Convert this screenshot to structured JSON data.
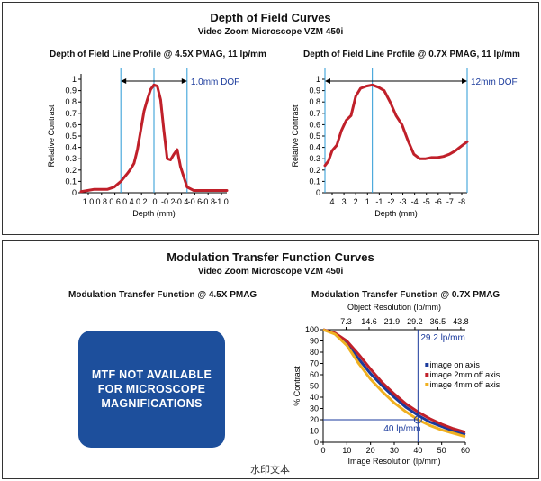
{
  "top_section": {
    "title": "Depth of Field Curves",
    "subtitle": "Video Zoom Microscope VZM 450i"
  },
  "bottom_section": {
    "title": "Modulation Transfer Function Curves",
    "subtitle": "Video Zoom Microscope VZM 450i",
    "left_chart_title": "Modulation Transfer Function @ 4.5X PMAG",
    "na_message": "MTF NOT AVAILABLE FOR MICROSCOPE MAGNIFICATIONS"
  },
  "watermark": "水印文本",
  "colors": {
    "curve_red": "#c0202a",
    "guide_blue": "#2a9ad6",
    "box_blue": "#1d4f9c",
    "line_blue": "#1a3a9c",
    "line_yellow": "#f0b020"
  },
  "chart_data": [
    {
      "type": "line",
      "title": "Depth of Field Line Profile @ 4.5X PMAG, 11 lp/mm",
      "xlabel": "Depth (mm)",
      "ylabel": "Relative Contrast",
      "x_tick_labels": [
        "1.0",
        "0.8",
        "0.6",
        "0.4",
        "0.2",
        "0",
        "-0.2",
        "-0.4",
        "-0.6",
        "-0.8",
        "-1.0"
      ],
      "y_ticks": [
        "0",
        "0.1",
        "0.2",
        "0.3",
        "0.4",
        "0.5",
        "0.6",
        "0.7",
        "0.8",
        "0.9",
        "1"
      ],
      "xlim": [
        1.1,
        -1.1
      ],
      "ylim": [
        0,
        1.0
      ],
      "annotation": "1.0mm DOF",
      "dof_bounds": [
        0.5,
        -0.5
      ],
      "center_line": 0,
      "series": [
        {
          "x": [
            1.1,
            1.0,
            0.9,
            0.8,
            0.7,
            0.6,
            0.5,
            0.4,
            0.35,
            0.3,
            0.25,
            0.2,
            0.15,
            0.1,
            0.05,
            0.0,
            -0.05,
            -0.1,
            -0.15,
            -0.2,
            -0.25,
            -0.3,
            -0.35,
            -0.4,
            -0.5,
            -0.6,
            -0.8,
            -1.0,
            -1.1
          ],
          "y": [
            0.01,
            0.02,
            0.03,
            0.03,
            0.03,
            0.05,
            0.1,
            0.17,
            0.21,
            0.26,
            0.38,
            0.55,
            0.72,
            0.82,
            0.91,
            0.95,
            0.94,
            0.82,
            0.55,
            0.3,
            0.29,
            0.34,
            0.38,
            0.23,
            0.05,
            0.02,
            0.02,
            0.02,
            0.02
          ]
        }
      ]
    },
    {
      "type": "line",
      "title": "Depth of Field Line Profile @ 0.7X PMAG, 11 lp/mm",
      "xlabel": "Depth (mm)",
      "ylabel": "Relative Contrast",
      "x_tick_labels": [
        "4",
        "3",
        "2",
        "1",
        "-1",
        "-2",
        "-3",
        "-4",
        "-5",
        "-6",
        "-7",
        "-8"
      ],
      "y_ticks": [
        "0",
        "0.1",
        "0.2",
        "0.3",
        "0.4",
        "0.5",
        "0.6",
        "0.7",
        "0.8",
        "0.9",
        "1"
      ],
      "xlim": [
        4,
        -8
      ],
      "ylim": [
        0,
        1.0
      ],
      "annotation": "12mm DOF",
      "dof_bounds": [
        4,
        -8
      ],
      "center_line": 0,
      "series": [
        {
          "x": [
            4,
            3.7,
            3.4,
            3,
            2.6,
            2.2,
            1.8,
            1.4,
            1,
            0.5,
            0,
            -0.5,
            -1,
            -1.5,
            -2,
            -2.5,
            -3,
            -3.5,
            -4,
            -4.5,
            -5,
            -5.5,
            -6,
            -6.5,
            -7,
            -7.5,
            -8
          ],
          "y": [
            0.24,
            0.28,
            0.37,
            0.42,
            0.55,
            0.64,
            0.68,
            0.85,
            0.92,
            0.94,
            0.95,
            0.93,
            0.9,
            0.8,
            0.68,
            0.6,
            0.46,
            0.34,
            0.3,
            0.3,
            0.31,
            0.31,
            0.32,
            0.34,
            0.37,
            0.41,
            0.45
          ]
        }
      ]
    },
    {
      "type": "line",
      "title": "Modulation Transfer Function @ 0.7X PMAG",
      "xlabel": "Image Resolution (lp/mm)",
      "ylabel": "% Contrast",
      "top_axis_label": "Object Resolution (lp/mm)",
      "top_ticks": [
        "7.3",
        "14.6",
        "21.9",
        "29.2",
        "36.5",
        "43.8"
      ],
      "x_ticks": [
        "0",
        "10",
        "20",
        "30",
        "40",
        "50",
        "60"
      ],
      "y_ticks": [
        "0",
        "10",
        "20",
        "30",
        "40",
        "50",
        "60",
        "70",
        "80",
        "90",
        "100"
      ],
      "xlim": [
        0,
        60
      ],
      "ylim": [
        0,
        100
      ],
      "annotations": [
        "29.2 lp/mm",
        "40 lp/mm"
      ],
      "marker": {
        "x": 40,
        "y": 20
      },
      "legend_position": "right",
      "series": [
        {
          "name": "image on axis",
          "color": "#1a3a9c",
          "x": [
            0,
            5,
            10,
            15,
            20,
            25,
            30,
            35,
            40,
            45,
            50,
            55,
            60
          ],
          "y": [
            100,
            97,
            88,
            74,
            61,
            50,
            40,
            31,
            24,
            18,
            14,
            10,
            7
          ]
        },
        {
          "name": "image 2mm off axis",
          "color": "#c0202a",
          "x": [
            0,
            5,
            10,
            15,
            20,
            25,
            30,
            35,
            40,
            45,
            50,
            55,
            60
          ],
          "y": [
            100,
            97,
            90,
            78,
            65,
            53,
            43,
            34,
            27,
            21,
            16,
            12,
            9
          ]
        },
        {
          "name": "image 4mm off axis",
          "color": "#f0b020",
          "x": [
            0,
            5,
            10,
            15,
            20,
            25,
            30,
            35,
            40,
            45,
            50,
            55,
            60
          ],
          "y": [
            100,
            96,
            86,
            70,
            56,
            45,
            35,
            27,
            20,
            15,
            11,
            8,
            5
          ]
        }
      ]
    }
  ]
}
